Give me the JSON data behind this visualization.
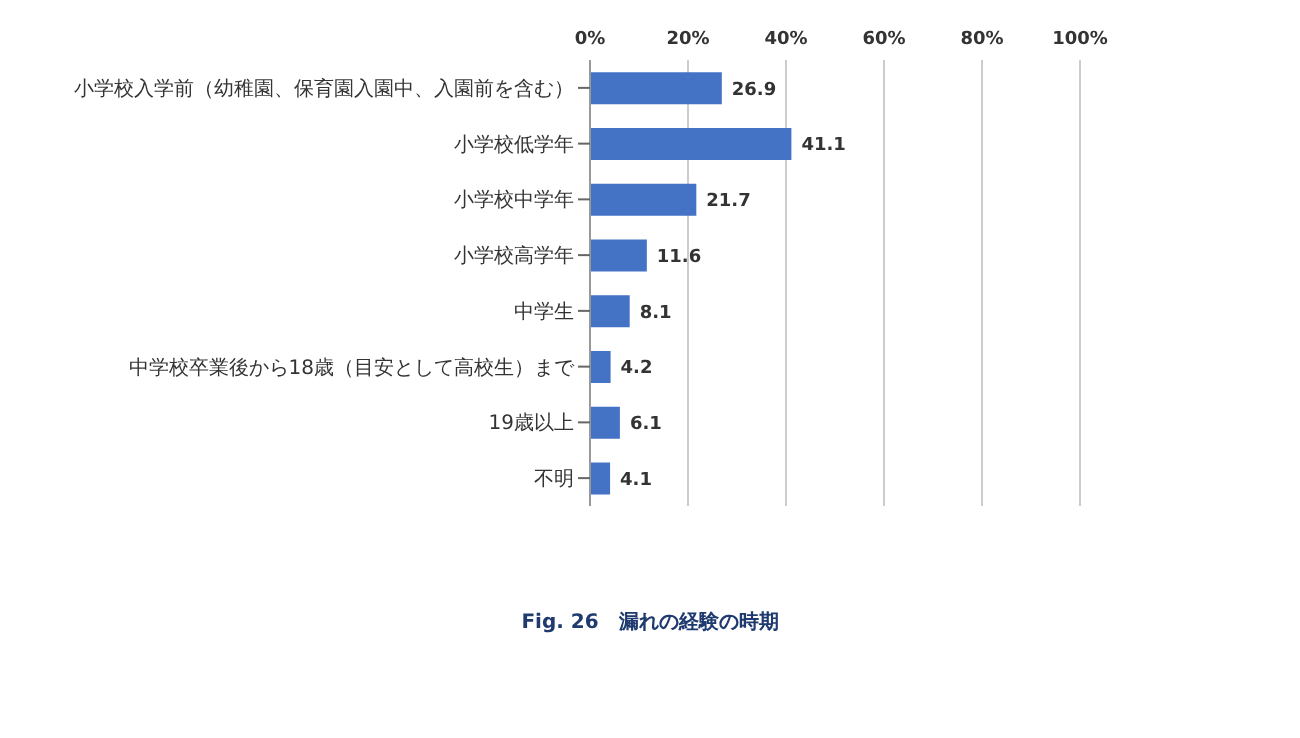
{
  "chart_data": {
    "type": "bar",
    "orientation": "horizontal",
    "title": "Fig. 26　漏れの経験の時期",
    "categories": [
      "小学校入学前（幼稚園、保育園入園中、入園前を含む）",
      "小学校低学年",
      "小学校中学年",
      "小学校高学年",
      "中学生",
      "中学校卒業後から18歳（目安として高校生）まで",
      "19歳以上",
      "不明"
    ],
    "values": [
      26.9,
      41.1,
      21.7,
      11.6,
      8.1,
      4.2,
      6.1,
      4.1
    ],
    "color": "#4472c4",
    "xlim": [
      0,
      100
    ],
    "xticks": [
      {
        "value": 0,
        "label": "0%"
      },
      {
        "value": 20,
        "label": "20%"
      },
      {
        "value": 40,
        "label": "40%"
      },
      {
        "value": 60,
        "label": "60%"
      },
      {
        "value": 80,
        "label": "80%"
      },
      {
        "value": 100,
        "label": "100%"
      }
    ],
    "grid": "x",
    "data_labels": true
  }
}
